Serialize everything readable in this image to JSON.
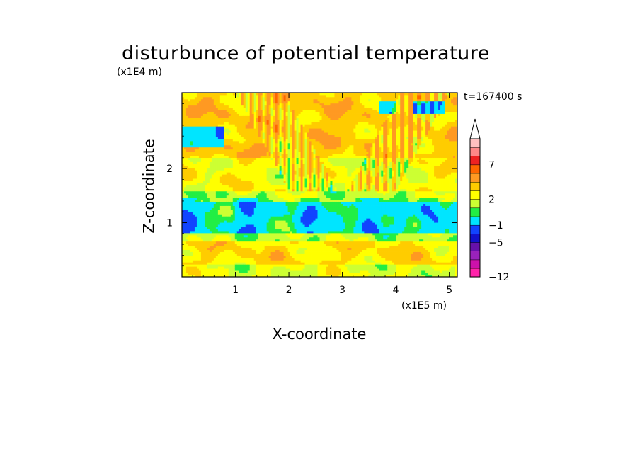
{
  "title": "disturbunce of potential temperature",
  "time_label": "t=167400 s",
  "chart_data": {
    "type": "heatmap",
    "title": "disturbunce of potential temperature",
    "xlabel": "X-coordinate",
    "ylabel": "Z-coordinate",
    "x_unit": "(x1E5 m)",
    "y_unit": "(x1E4 m)",
    "xlim": [
      0,
      5.15
    ],
    "ylim": [
      0,
      3.4
    ],
    "x_ticks": [
      1,
      2,
      3,
      4,
      5
    ],
    "y_ticks": [
      1,
      2
    ],
    "x_tick_labels": [
      "1",
      "2",
      "3",
      "4",
      "5"
    ],
    "y_tick_labels": [
      "1",
      "2"
    ],
    "colorbar": {
      "levels": [
        -12,
        -11,
        -9,
        -7,
        -5,
        -3,
        -1,
        0,
        1,
        2,
        3,
        5,
        7,
        9,
        11
      ],
      "colors": [
        "#ff22aa",
        "#cc11aa",
        "#9922bb",
        "#6611aa",
        "#1111cc",
        "#1144ff",
        "#00e5ff",
        "#22ee44",
        "#ccff33",
        "#ffff00",
        "#ffcc00",
        "#ff9922",
        "#ff6600",
        "#ee2222",
        "#ff8888",
        "#ffc0c0"
      ],
      "tick_labels": [
        "7",
        "2",
        "−1",
        "−5",
        "−12"
      ],
      "extend": "max"
    },
    "bands": [
      {
        "z_range": [
          0,
          0.25
        ],
        "value": 1
      },
      {
        "z_range": [
          0.25,
          0.65
        ],
        "value": 2
      },
      {
        "z_range": [
          0.65,
          0.8
        ],
        "value": 0.5
      },
      {
        "z_range": [
          0.8,
          1.4
        ],
        "value": -1
      },
      {
        "z_range": [
          1.4,
          1.6
        ],
        "value": 0.5
      },
      {
        "z_range": [
          1.6,
          2.2
        ],
        "value": 1.5
      },
      {
        "z_range": [
          2.2,
          3.4
        ],
        "value": 2.5
      }
    ]
  }
}
